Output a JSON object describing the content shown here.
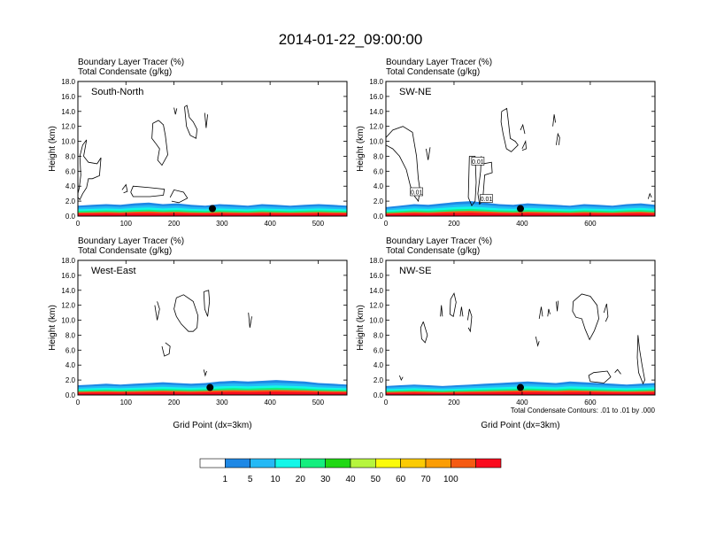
{
  "title": "2014-01-22_09:00:00",
  "colors": {
    "levels": [
      "#ffffff",
      "#1e88e5",
      "#25b9f5",
      "#13f7e8",
      "#14ee7e",
      "#20d814",
      "#b6f53e",
      "#fbfb0b",
      "#fbcb05",
      "#fb9d05",
      "#f55a12",
      "#fa0b1e"
    ]
  },
  "colorbar": {
    "labels": [
      "1",
      "5",
      "10",
      "20",
      "30",
      "40",
      "50",
      "60",
      "70",
      "100"
    ]
  },
  "chart_data": [
    {
      "type": "heatmap",
      "name": "South-North",
      "header": [
        "Boundary Layer Tracer   (%)",
        "Total Condensate   (g/kg)"
      ],
      "xlabel": "",
      "ylabel": "Height (km)",
      "xlim": [
        0,
        560
      ],
      "ylim": [
        0,
        18
      ],
      "xticks": [
        0,
        100,
        200,
        300,
        400,
        500
      ],
      "yticks": [
        "0.0",
        "2.0",
        "4.0",
        "6.0",
        "8.0",
        "10.0",
        "12.0",
        "14.0",
        "16.0",
        "18.0"
      ],
      "pbl_top_km": [
        1.4,
        1.5,
        1.6,
        1.5,
        1.7,
        1.8,
        1.6,
        1.7,
        1.5,
        1.4,
        1.6,
        1.5,
        1.4,
        1.6,
        1.5,
        1.4,
        1.5,
        1.6,
        1.5,
        1.4
      ],
      "marker_x": 280,
      "marker_y": 1.0,
      "condensate_contours": [
        [
          [
            0,
            3.0
          ],
          [
            3,
            3.8
          ],
          [
            6,
            5.5
          ],
          [
            4,
            8.0
          ],
          [
            10,
            9.5
          ],
          [
            18,
            10.2
          ],
          [
            12,
            8.0
          ],
          [
            22,
            7.2
          ],
          [
            40,
            7.0
          ],
          [
            48,
            7.8
          ],
          [
            45,
            5.4
          ],
          [
            30,
            5.0
          ],
          [
            22,
            5.0
          ],
          [
            18,
            3.8
          ],
          [
            10,
            3.0
          ],
          [
            4,
            2.2
          ],
          [
            0,
            2.5
          ]
        ],
        [
          [
            110,
            3.2
          ],
          [
            115,
            4.0
          ],
          [
            150,
            3.8
          ],
          [
            180,
            3.6
          ],
          [
            178,
            2.8
          ],
          [
            150,
            2.6
          ],
          [
            115,
            2.6
          ],
          [
            110,
            3.2
          ]
        ],
        [
          [
            192,
            2.5
          ],
          [
            200,
            3.5
          ],
          [
            220,
            3.2
          ],
          [
            228,
            2.4
          ],
          [
            210,
            1.8
          ],
          [
            195,
            2.0
          ]
        ],
        [
          [
            92,
            3.5
          ],
          [
            100,
            4.2
          ],
          [
            103,
            3.3
          ],
          [
            95,
            3.1
          ]
        ],
        [
          [
            222,
            14.6
          ],
          [
            226,
            12.0
          ],
          [
            234,
            10.8
          ],
          [
            246,
            10.4
          ],
          [
            248,
            11.6
          ],
          [
            240,
            12.6
          ],
          [
            232,
            13.2
          ],
          [
            227,
            14.8
          ],
          [
            222,
            14.6
          ]
        ],
        [
          [
            200,
            14.5
          ],
          [
            203,
            13.6
          ],
          [
            206,
            14.4
          ]
        ],
        [
          [
            264,
            13.8
          ],
          [
            267,
            11.8
          ],
          [
            270,
            13.6
          ]
        ],
        [
          [
            168,
            12.8
          ],
          [
            178,
            12.2
          ],
          [
            182,
            10.8
          ],
          [
            187,
            8.2
          ],
          [
            175,
            6.8
          ],
          [
            166,
            7.5
          ],
          [
            170,
            9.0
          ],
          [
            161,
            9.8
          ],
          [
            154,
            10.4
          ],
          [
            156,
            12.4
          ],
          [
            168,
            12.8
          ]
        ]
      ]
    },
    {
      "type": "heatmap",
      "name": "SW-NE",
      "header": [
        "Boundary Layer Tracer   (%)",
        "Total Condensate   (g/kg)"
      ],
      "xlabel": "",
      "ylabel": "Height (km)",
      "xlim": [
        0,
        790
      ],
      "ylim": [
        0,
        18
      ],
      "xticks": [
        0,
        200,
        400,
        600
      ],
      "yticks": [
        "0.0",
        "2.0",
        "4.0",
        "6.0",
        "8.0",
        "10.0",
        "12.0",
        "14.0",
        "16.0",
        "18.0"
      ],
      "pbl_top_km": [
        1.2,
        1.4,
        1.6,
        1.5,
        1.7,
        1.9,
        2.0,
        1.8,
        1.6,
        1.5,
        1.7,
        1.6,
        1.5,
        1.4,
        1.6,
        1.5,
        1.4,
        1.6,
        1.7,
        1.5
      ],
      "marker_x": 395,
      "marker_y": 1.0,
      "condensate_labels": [
        {
          "x": 90,
          "y": 3.2,
          "text": "0.01"
        },
        {
          "x": 270,
          "y": 7.3,
          "text": "0.01"
        },
        {
          "x": 295,
          "y": 2.3,
          "text": "0.01"
        }
      ],
      "condensate_contours": [
        [
          [
            0,
            10.5
          ],
          [
            20,
            11.5
          ],
          [
            50,
            12.0
          ],
          [
            78,
            11.2
          ],
          [
            90,
            8.0
          ],
          [
            95,
            5.0
          ],
          [
            100,
            3.5
          ],
          [
            95,
            2.0
          ],
          [
            85,
            2.6
          ],
          [
            72,
            4.0
          ],
          [
            60,
            6.2
          ],
          [
            40,
            8.0
          ],
          [
            20,
            9.0
          ],
          [
            0,
            9.5
          ]
        ],
        [
          [
            118,
            9.0
          ],
          [
            124,
            7.5
          ],
          [
            130,
            9.2
          ]
        ],
        [
          [
            245,
            8.0
          ],
          [
            262,
            8.0
          ],
          [
            265,
            4.5
          ],
          [
            262,
            2.0
          ],
          [
            252,
            1.4
          ],
          [
            242,
            2.5
          ],
          [
            245,
            8.0
          ]
        ],
        [
          [
            280,
            8.0
          ],
          [
            286,
            7.0
          ],
          [
            310,
            7.2
          ],
          [
            312,
            5.8
          ],
          [
            290,
            5.5
          ],
          [
            284,
            2.0
          ],
          [
            275,
            1.6
          ],
          [
            270,
            3.0
          ],
          [
            278,
            6.0
          ],
          [
            280,
            8.0
          ]
        ],
        [
          [
            340,
            14.0
          ],
          [
            355,
            14.4
          ],
          [
            360,
            12.5
          ],
          [
            365,
            10.4
          ],
          [
            380,
            10.0
          ],
          [
            388,
            9.5
          ],
          [
            368,
            8.6
          ],
          [
            354,
            9.0
          ],
          [
            344,
            11.0
          ],
          [
            338,
            12.6
          ],
          [
            340,
            14.0
          ]
        ],
        [
          [
            395,
            11.5
          ],
          [
            402,
            12.2
          ],
          [
            408,
            11.0
          ]
        ],
        [
          [
            400,
            9.0
          ],
          [
            410,
            10.0
          ],
          [
            412,
            9.0
          ],
          [
            400,
            8.8
          ]
        ],
        [
          [
            490,
            12.0
          ],
          [
            494,
            13.6
          ],
          [
            498,
            12.5
          ]
        ],
        [
          [
            500,
            9.5
          ],
          [
            505,
            11.0
          ],
          [
            510,
            10.5
          ],
          [
            508,
            9.5
          ]
        ],
        [
          [
            770,
            2.3
          ],
          [
            775,
            3.0
          ],
          [
            780,
            2.5
          ]
        ]
      ]
    },
    {
      "type": "heatmap",
      "name": "West-East",
      "header": [
        "Boundary Layer Tracer   (%)",
        "Total Condensate   (g/kg)"
      ],
      "xlabel": "Grid Point (dx=3km)",
      "ylabel": "Height (km)",
      "xlim": [
        0,
        560
      ],
      "ylim": [
        0,
        18
      ],
      "xticks": [
        0,
        100,
        200,
        300,
        400,
        500
      ],
      "yticks": [
        "0.0",
        "2.0",
        "4.0",
        "6.0",
        "8.0",
        "10.0",
        "12.0",
        "14.0",
        "16.0",
        "18.0"
      ],
      "pbl_top_km": [
        1.3,
        1.4,
        1.5,
        1.4,
        1.5,
        1.6,
        1.7,
        1.6,
        1.5,
        1.6,
        1.8,
        1.9,
        1.8,
        1.9,
        2.0,
        1.9,
        1.8,
        1.6,
        1.5,
        1.4
      ],
      "marker_x": 275,
      "marker_y": 1.0,
      "condensate_contours": [
        [
          [
            205,
            13.0
          ],
          [
            220,
            13.4
          ],
          [
            240,
            12.5
          ],
          [
            250,
            10.6
          ],
          [
            248,
            9.0
          ],
          [
            240,
            8.5
          ],
          [
            230,
            8.5
          ],
          [
            215,
            9.5
          ],
          [
            205,
            10.5
          ],
          [
            200,
            11.5
          ],
          [
            205,
            13.0
          ]
        ],
        [
          [
            160,
            12.0
          ],
          [
            165,
            10.0
          ],
          [
            170,
            11.5
          ],
          [
            165,
            12.5
          ]
        ],
        [
          [
            262,
            13.8
          ],
          [
            264,
            11.5
          ],
          [
            270,
            10.5
          ],
          [
            274,
            12.5
          ],
          [
            272,
            14.0
          ],
          [
            262,
            13.8
          ]
        ],
        [
          [
            355,
            11.0
          ],
          [
            358,
            9.0
          ],
          [
            362,
            10.5
          ]
        ],
        [
          [
            175,
            6.5
          ],
          [
            180,
            5.2
          ],
          [
            190,
            5.5
          ],
          [
            192,
            6.5
          ],
          [
            182,
            7.0
          ]
        ],
        [
          [
            262,
            3.4
          ],
          [
            265,
            2.6
          ],
          [
            268,
            3.2
          ]
        ]
      ]
    },
    {
      "type": "heatmap",
      "name": "NW-SE",
      "header": [
        "Boundary Layer Tracer   (%)",
        "Total Condensate   (g/kg)"
      ],
      "xlabel": "Grid Point (dx=3km)",
      "ylabel": "Height (km)",
      "xlim": [
        0,
        790
      ],
      "ylim": [
        0,
        18
      ],
      "xticks": [
        0,
        200,
        400,
        600
      ],
      "yticks": [
        "0.0",
        "2.0",
        "4.0",
        "6.0",
        "8.0",
        "10.0",
        "12.0",
        "14.0",
        "16.0",
        "18.0"
      ],
      "pbl_top_km": [
        1.2,
        1.3,
        1.4,
        1.3,
        1.2,
        1.3,
        1.4,
        1.5,
        1.6,
        1.7,
        1.8,
        1.7,
        1.6,
        1.8,
        1.7,
        1.6,
        1.5,
        1.4,
        1.5,
        1.6
      ],
      "marker_x": 395,
      "marker_y": 1.0,
      "note": "Total Condensate Contours: .01 to .01 by .000",
      "condensate_contours": [
        [
          [
            550,
            12.5
          ],
          [
            575,
            13.5
          ],
          [
            600,
            13.2
          ],
          [
            620,
            12.0
          ],
          [
            625,
            10.2
          ],
          [
            612,
            8.6
          ],
          [
            598,
            7.4
          ],
          [
            585,
            8.8
          ],
          [
            575,
            10.2
          ],
          [
            558,
            10.4
          ],
          [
            548,
            11.2
          ],
          [
            550,
            12.5
          ]
        ],
        [
          [
            190,
            12.8
          ],
          [
            200,
            13.6
          ],
          [
            206,
            12.4
          ],
          [
            198,
            10.5
          ],
          [
            188,
            10.8
          ],
          [
            190,
            12.8
          ]
        ],
        [
          [
            160,
            10.5
          ],
          [
            163,
            12.0
          ],
          [
            166,
            10.5
          ]
        ],
        [
          [
            218,
            10.5
          ],
          [
            222,
            11.8
          ],
          [
            226,
            10.5
          ]
        ],
        [
          [
            240,
            10.0
          ],
          [
            245,
            11.5
          ],
          [
            252,
            10.5
          ],
          [
            248,
            8.5
          ],
          [
            242,
            9.0
          ]
        ],
        [
          [
            110,
            9.8
          ],
          [
            115,
            9.0
          ],
          [
            122,
            8.0
          ],
          [
            115,
            7.0
          ],
          [
            105,
            7.5
          ],
          [
            102,
            9.0
          ],
          [
            110,
            9.8
          ]
        ],
        [
          [
            450,
            10.2
          ],
          [
            456,
            11.8
          ],
          [
            460,
            10.5
          ]
        ],
        [
          [
            475,
            10.5
          ],
          [
            478,
            11.5
          ],
          [
            482,
            10.8
          ]
        ],
        [
          [
            500,
            12.5
          ],
          [
            503,
            11.2
          ],
          [
            506,
            12.6
          ]
        ],
        [
          [
            440,
            7.8
          ],
          [
            446,
            6.6
          ],
          [
            450,
            7.2
          ]
        ],
        [
          [
            640,
            11.0
          ],
          [
            648,
            12.2
          ],
          [
            652,
            10.5
          ],
          [
            645,
            9.8
          ]
        ],
        [
          [
            740,
            8.0
          ],
          [
            745,
            6.0
          ],
          [
            752,
            4.0
          ],
          [
            760,
            2.0
          ],
          [
            755,
            1.5
          ],
          [
            742,
            3.0
          ],
          [
            738,
            5.0
          ],
          [
            740,
            8.0
          ]
        ],
        [
          [
            40,
            2.6
          ],
          [
            45,
            2.0
          ],
          [
            50,
            2.4
          ]
        ],
        [
          [
            595,
            2.6
          ],
          [
            600,
            1.8
          ],
          [
            640,
            1.6
          ],
          [
            660,
            2.4
          ],
          [
            650,
            3.2
          ],
          [
            610,
            3.0
          ],
          [
            595,
            2.6
          ]
        ],
        [
          [
            672,
            3.0
          ],
          [
            680,
            3.4
          ],
          [
            690,
            2.8
          ]
        ]
      ]
    }
  ]
}
